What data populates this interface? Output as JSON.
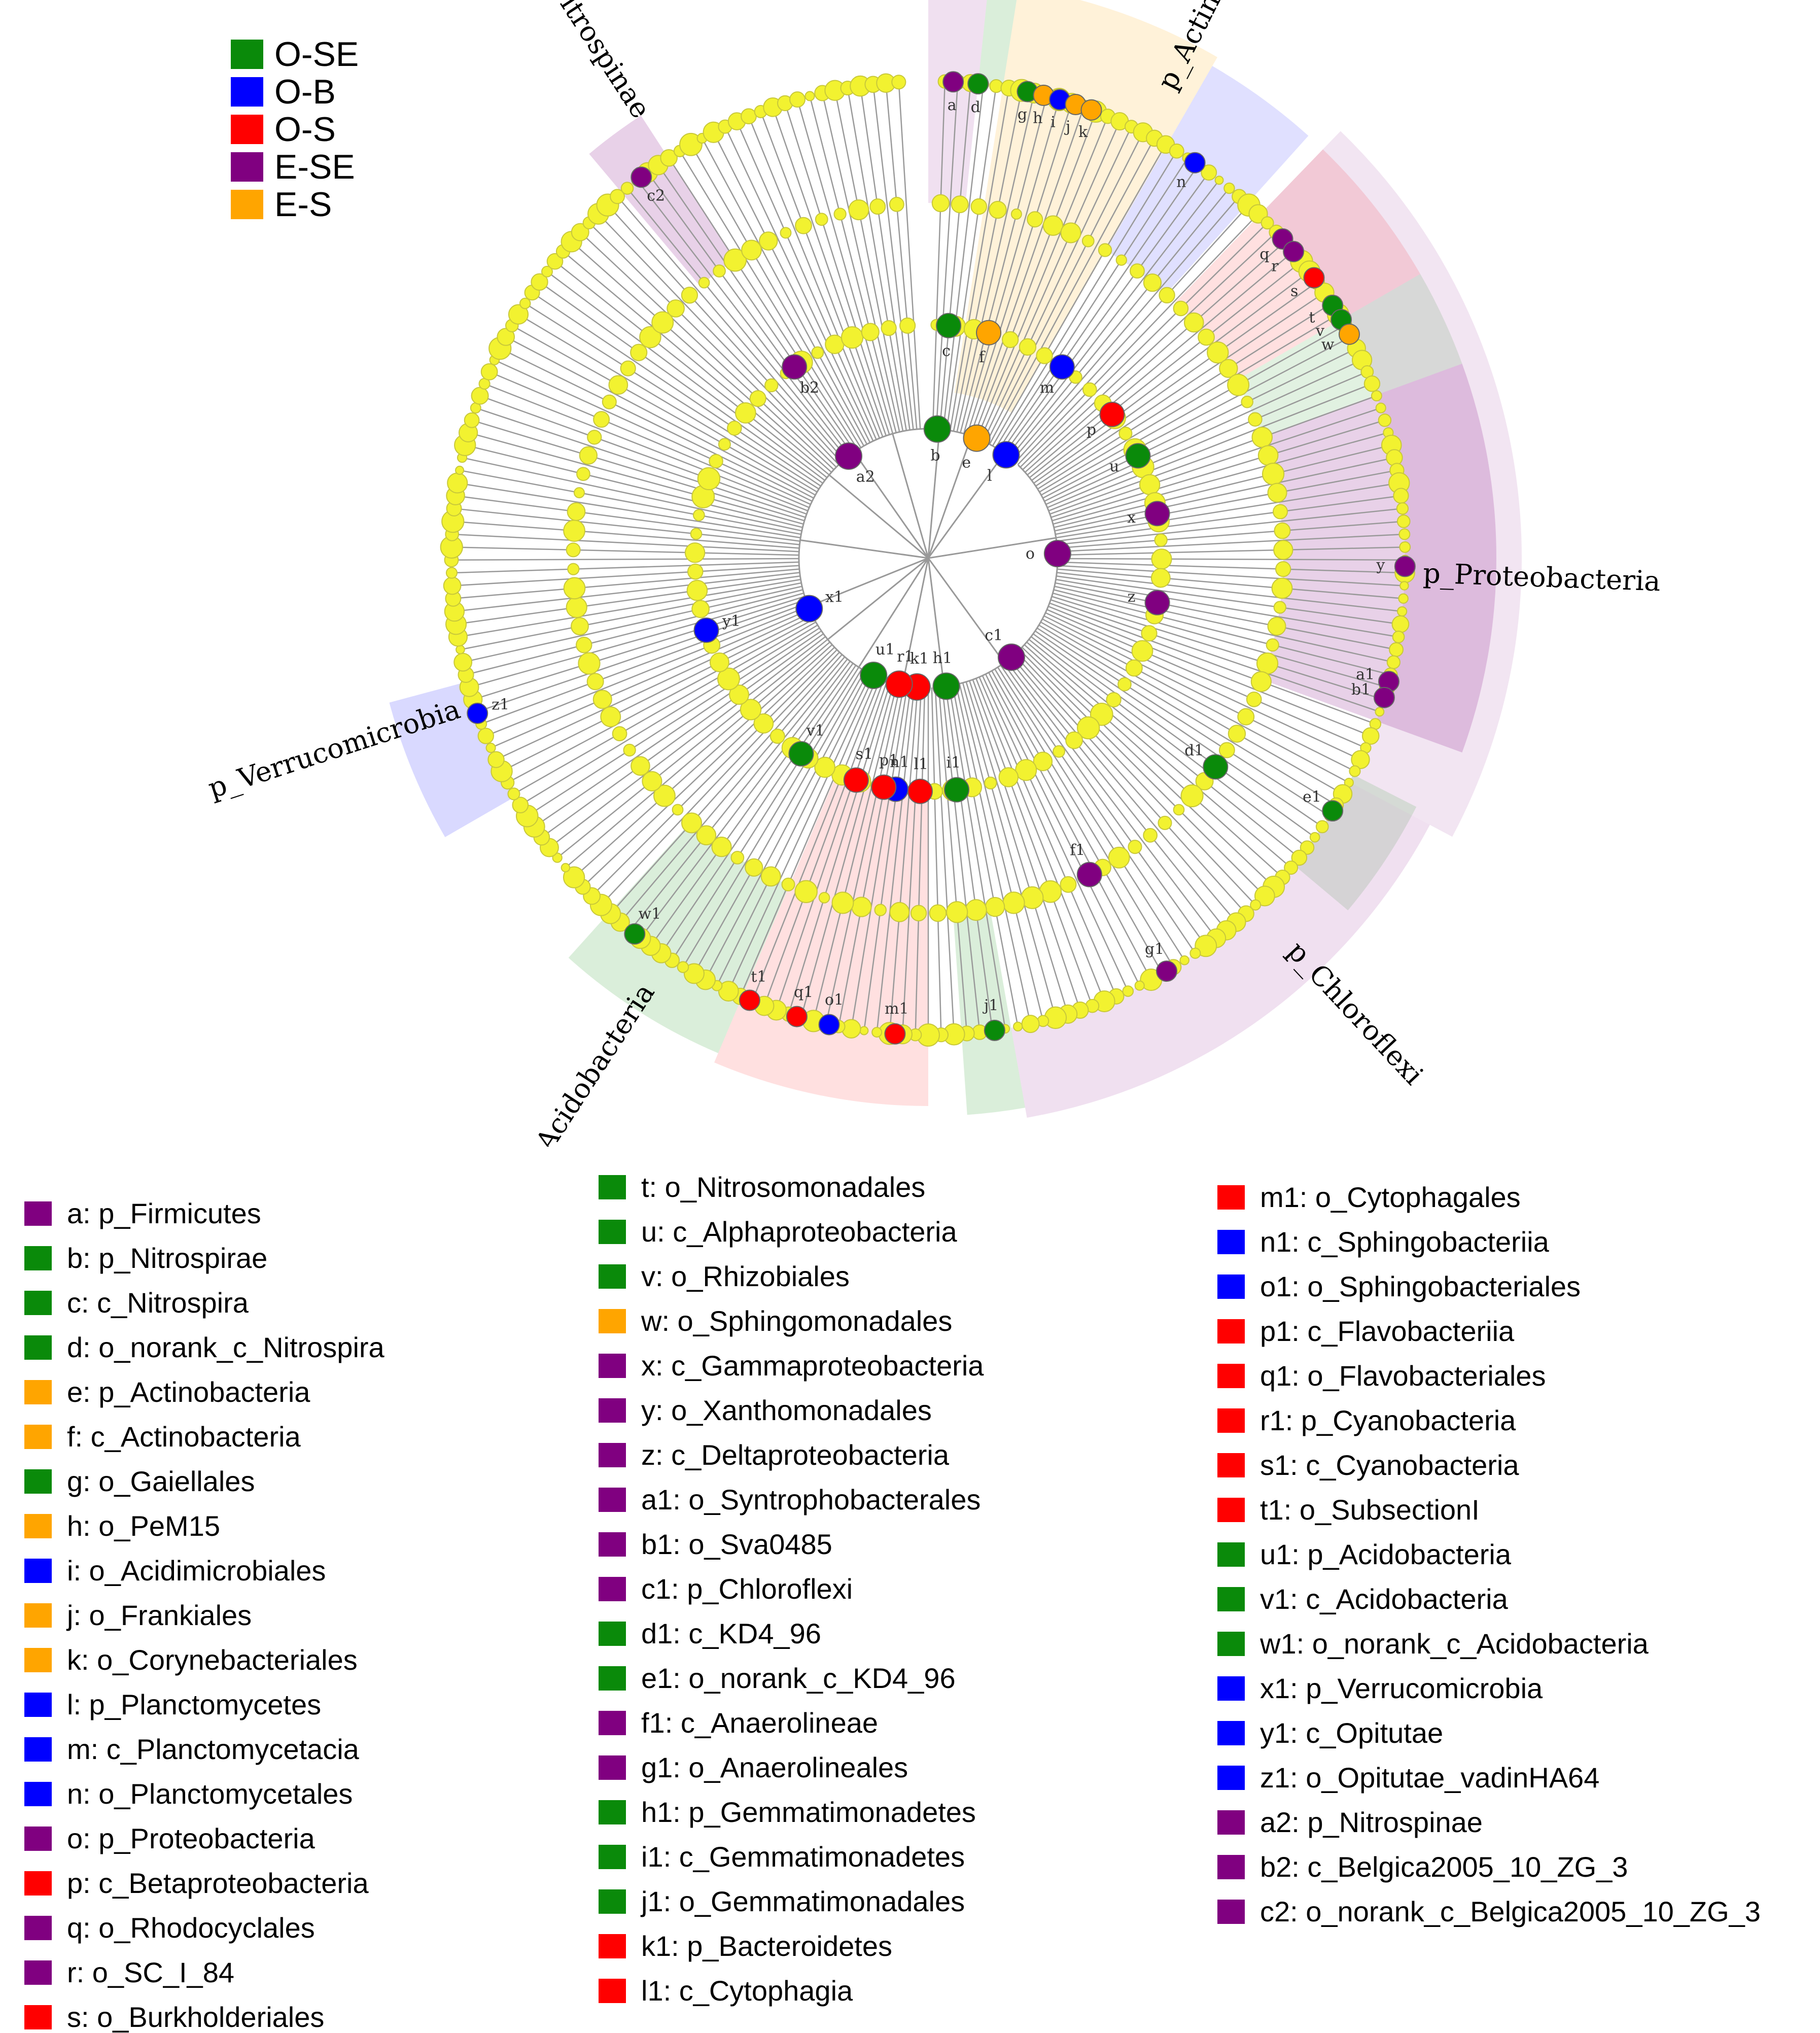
{
  "colors": {
    "O-SE": "#0a8a0a",
    "O-B": "#0000ff",
    "O-S": "#ff0000",
    "E-SE": "#800080",
    "E-S": "#ffa500",
    "neutral_node": "#f2f230",
    "edge": "#999999"
  },
  "group_legend": [
    {
      "label": "O-SE",
      "group": "O-SE"
    },
    {
      "label": "O-B",
      "group": "O-B"
    },
    {
      "label": "O-S",
      "group": "O-S"
    },
    {
      "label": "E-SE",
      "group": "E-SE"
    },
    {
      "label": "E-S",
      "group": "E-S"
    }
  ],
  "clade_labels": [
    {
      "text": "p_Actinobacteria"
    },
    {
      "text": "p_Proteobacteria"
    },
    {
      "text": "p_Chloroflexi"
    },
    {
      "text": "p_Bacteroidetes"
    },
    {
      "text": "p_Acidobacteria"
    },
    {
      "text": "p_Verrucomicrobia"
    },
    {
      "text": "p_Nitrospinae"
    }
  ],
  "node_codes": [
    "a",
    "b",
    "c",
    "d",
    "e",
    "f",
    "g",
    "h",
    "i",
    "j",
    "k",
    "l",
    "m",
    "n",
    "o",
    "p",
    "q",
    "r",
    "s",
    "t",
    "u",
    "v",
    "w",
    "x",
    "y",
    "z",
    "a1",
    "b1",
    "c1",
    "d1",
    "e1",
    "f1",
    "g1",
    "h1",
    "i1",
    "j1",
    "k1",
    "l1",
    "m1",
    "n1",
    "o1",
    "p1",
    "q1",
    "r1",
    "s1",
    "t1",
    "u1",
    "v1",
    "w1",
    "x1",
    "y1",
    "z1",
    "a2",
    "b2",
    "c2"
  ],
  "key": [
    [
      {
        "label": "a: p_Firmicutes",
        "group": "E-SE"
      },
      {
        "label": "b: p_Nitrospirae",
        "group": "O-SE"
      },
      {
        "label": "c:  c_Nitrospira",
        "group": "O-SE"
      },
      {
        "label": "d: o_norank_c_Nitrospira",
        "group": "O-SE"
      },
      {
        "label": "e: p_Actinobacteria",
        "group": "E-S"
      },
      {
        "label": "f: c_Actinobacteria",
        "group": "E-S"
      },
      {
        "label": "g: o_Gaiellales",
        "group": "O-SE"
      },
      {
        "label": "h: o_PeM15",
        "group": "E-S"
      },
      {
        "label": "i: o_Acidimicrobiales",
        "group": "O-B"
      },
      {
        "label": "j: o_Frankiales",
        "group": "E-S"
      },
      {
        "label": "k: o_Corynebacteriales",
        "group": "E-S"
      },
      {
        "label": "l: p_Planctomycetes",
        "group": "O-B"
      },
      {
        "label": "m: c_Planctomycetacia",
        "group": "O-B"
      },
      {
        "label": "n: o_Planctomycetales",
        "group": "O-B"
      },
      {
        "label": "o: p_Proteobacteria",
        "group": "E-SE"
      },
      {
        "label": "p: c_Betaproteobacteria",
        "group": "O-S"
      },
      {
        "label": "q: o_Rhodocyclales",
        "group": "E-SE"
      },
      {
        "label": "r: o_SC_I_84",
        "group": "E-SE"
      },
      {
        "label": "s: o_Burkholderiales",
        "group": "O-S"
      }
    ],
    [
      {
        "label": "t: o_Nitrosomonadales",
        "group": "O-SE"
      },
      {
        "label": "u: c_Alphaproteobacteria",
        "group": "O-SE"
      },
      {
        "label": "v: o_Rhizobiales",
        "group": "O-SE"
      },
      {
        "label": "w: o_Sphingomonadales",
        "group": "E-S"
      },
      {
        "label": "x: c_Gammaproteobacteria",
        "group": "E-SE"
      },
      {
        "label": "y: o_Xanthomonadales",
        "group": "E-SE"
      },
      {
        "label": "z: c_Deltaproteobacteria",
        "group": "E-SE"
      },
      {
        "label": "a1: o_Syntrophobacterales",
        "group": "E-SE"
      },
      {
        "label": "b1: o_Sva0485",
        "group": "E-SE"
      },
      {
        "label": "c1: p_Chloroflexi",
        "group": "E-SE"
      },
      {
        "label": "d1: c_KD4_96",
        "group": "O-SE"
      },
      {
        "label": "e1: o_norank_c_KD4_96",
        "group": "O-SE"
      },
      {
        "label": "f1: c_Anaerolineae",
        "group": "E-SE"
      },
      {
        "label": "g1: o_Anaerolineales",
        "group": "E-SE"
      },
      {
        "label": "h1: p_Gemmatimonadetes",
        "group": "O-SE"
      },
      {
        "label": "i1: c_Gemmatimonadetes",
        "group": "O-SE"
      },
      {
        "label": "j1: o_Gemmatimonadales",
        "group": "O-SE"
      },
      {
        "label": "k1: p_Bacteroidetes",
        "group": "O-S"
      },
      {
        "label": "l1: c_Cytophagia",
        "group": "O-S"
      }
    ],
    [
      {
        "label": "m1: o_Cytophagales",
        "group": "O-S"
      },
      {
        "label": "n1: c_Sphingobacteriia",
        "group": "O-B"
      },
      {
        "label": "o1: o_Sphingobacteriales",
        "group": "O-B"
      },
      {
        "label": "p1: c_Flavobacteriia",
        "group": "O-S"
      },
      {
        "label": "q1: o_Flavobacteriales",
        "group": "O-S"
      },
      {
        "label": "r1: p_Cyanobacteria",
        "group": "O-S"
      },
      {
        "label": "s1: c_Cyanobacteria",
        "group": "O-S"
      },
      {
        "label": "t1: o_SubsectionI",
        "group": "O-S"
      },
      {
        "label": "u1: p_Acidobacteria",
        "group": "O-SE"
      },
      {
        "label": "v1: c_Acidobacteria",
        "group": "O-SE"
      },
      {
        "label": "w1: o_norank_c_Acidobacteria",
        "group": "O-SE"
      },
      {
        "label": "x1: p_Verrucomicrobia",
        "group": "O-B"
      },
      {
        "label": "y1: c_Opitutae",
        "group": "O-B"
      },
      {
        "label": "z1: o_Opitutae_vadinHA64",
        "group": "O-B"
      },
      {
        "label": "a2: p_Nitrospinae",
        "group": "E-SE"
      },
      {
        "label": "b2: c_Belgica2005_10_ZG_3",
        "group": "E-SE"
      },
      {
        "label": "c2: o_norank_c_Belgica2005_10_ZG_3",
        "group": "E-SE"
      }
    ]
  ]
}
